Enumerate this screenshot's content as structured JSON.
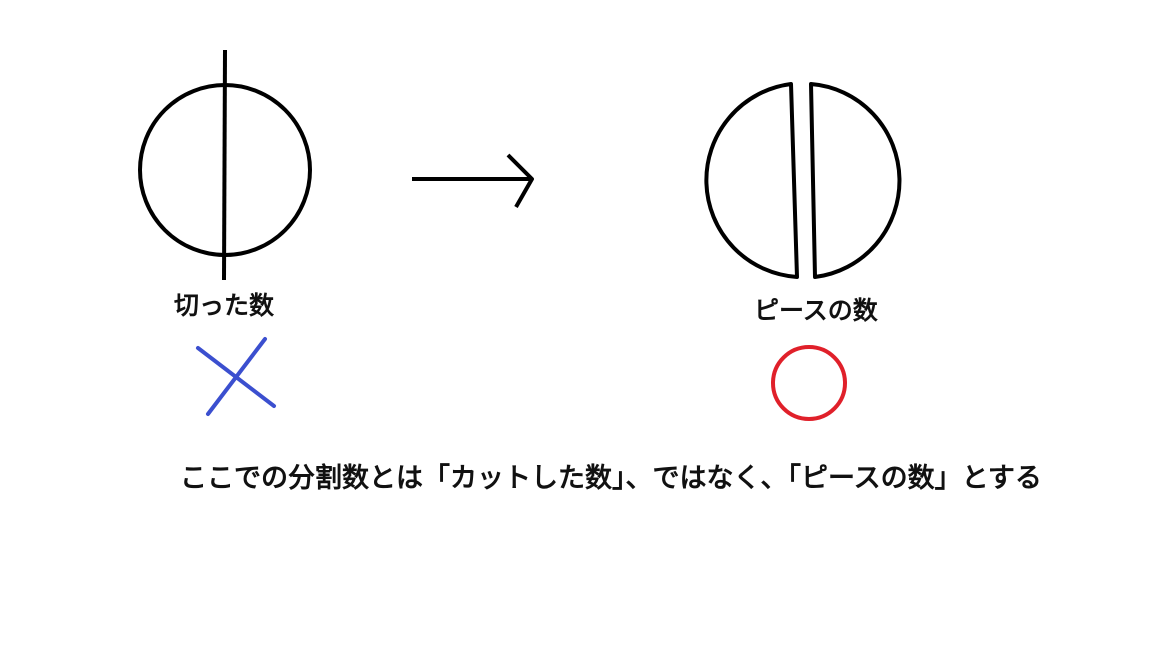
{
  "left_label": "切った数",
  "right_label": "ピースの数",
  "caption": "ここでの分割数とは「カットした数」、ではなく、「ピースの数」とする",
  "wrong_mark": {
    "icon": "cross-mark-icon",
    "color": "#3b4fcf"
  },
  "right_mark": {
    "icon": "circle-mark-icon",
    "color": "#e0202a"
  },
  "line_color": "#000000"
}
